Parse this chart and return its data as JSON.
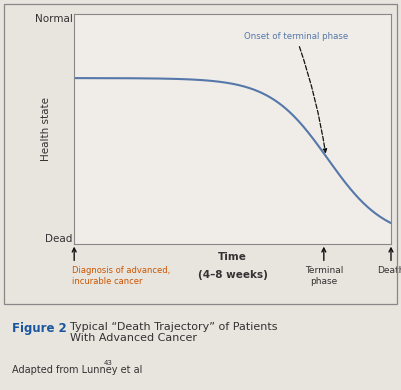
{
  "bg_color": "#e8e4de",
  "plot_bg_color": "#f0ede8",
  "curve_color": "#5577aa",
  "curve_linewidth": 1.5,
  "ylabel": "Health state",
  "xlabel_line1": "Time",
  "xlabel_line2": "(4–8 weeks)",
  "ytick_normal": "Normal",
  "ytick_dead": "Dead",
  "onset_label": "Onset of terminal phase",
  "onset_label_color": "#5577aa",
  "diag_label": "Diagnosis of advanced,\nincurable cancer",
  "diag_label_color": "#cc5500",
  "terminal_label": "Terminal\nphase",
  "death_label": "Death",
  "text_color": "#333333",
  "figure2_bold": "Figure 2",
  "figure2_rest": "Typical “Death Trajectory” of Patients\nWith Advanced Cancer",
  "figure_source": "Adapted from Lunney et al",
  "figure_source_super": "43",
  "title_color": "#1a55a0",
  "arrow_color": "#111111",
  "outer_box_color": "#888888",
  "spine_color": "#888888"
}
